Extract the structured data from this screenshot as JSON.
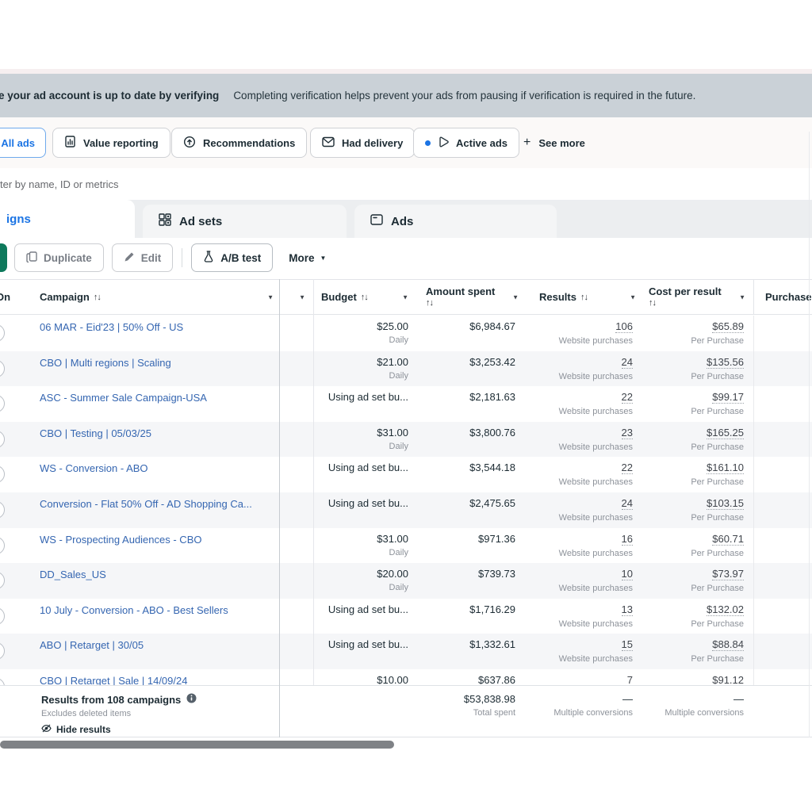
{
  "banner": {
    "bold_text": "e your ad account is up to date by verifying",
    "text": "Completing verification helps prevent your ads from pausing if verification is required in the future."
  },
  "filters": {
    "all_ads_label": "All ads",
    "buttons": [
      {
        "label": "Value reporting",
        "icon": "value-reporting-icon"
      },
      {
        "label": "Recommendations",
        "icon": "recommendations-icon"
      },
      {
        "label": "Had delivery",
        "icon": "had-delivery-icon"
      },
      {
        "label": "Active ads",
        "icon": "active-ads-icon"
      }
    ],
    "see_more_plus": "+",
    "see_more_label": "See more"
  },
  "search": {
    "placeholder": "ter by name, ID or metrics"
  },
  "tabs": {
    "campaigns_label": "igns",
    "ad_sets_label": "Ad sets",
    "ads_label": "Ads"
  },
  "toolbar": {
    "duplicate_label": "Duplicate",
    "edit_label": "Edit",
    "ab_test_label": "A/B test",
    "more_label": "More",
    "more_caret": "▼"
  },
  "table": {
    "header": {
      "on": "On",
      "campaign": "Campaign",
      "budget": "Budget",
      "amount_spent": "Amount spent",
      "results": "Results",
      "cost_per_result": "Cost per result",
      "purchases": "Purchases",
      "sort_glyph": "↑↓",
      "caret": "▼"
    },
    "rows": [
      {
        "name": "06 MAR - Eid'23 | 50% Off - US",
        "budget": "$25.00",
        "budget_sub": "Daily",
        "spent": "$6,984.67",
        "results": "106",
        "results_sub": "Website purchases",
        "cost": "$65.89",
        "cost_sub": "Per Purchase"
      },
      {
        "name": "CBO | Multi regions | Scaling",
        "budget": "$21.00",
        "budget_sub": "Daily",
        "spent": "$3,253.42",
        "results": "24",
        "results_sub": "Website purchases",
        "cost": "$135.56",
        "cost_sub": "Per Purchase"
      },
      {
        "name": "ASC - Summer Sale Campaign-USA",
        "budget": "Using ad set bu...",
        "budget_sub": "",
        "spent": "$2,181.63",
        "results": "22",
        "results_sub": "Website purchases",
        "cost": "$99.17",
        "cost_sub": "Per Purchase"
      },
      {
        "name": "CBO | Testing | 05/03/25",
        "budget": "$31.00",
        "budget_sub": "Daily",
        "spent": "$3,800.76",
        "results": "23",
        "results_sub": "Website purchases",
        "cost": "$165.25",
        "cost_sub": "Per Purchase"
      },
      {
        "name": "WS - Conversion - ABO",
        "budget": "Using ad set bu...",
        "budget_sub": "",
        "spent": "$3,544.18",
        "results": "22",
        "results_sub": "Website purchases",
        "cost": "$161.10",
        "cost_sub": "Per Purchase"
      },
      {
        "name": "Conversion - Flat 50% Off - AD Shopping Ca...",
        "budget": "Using ad set bu...",
        "budget_sub": "",
        "spent": "$2,475.65",
        "results": "24",
        "results_sub": "Website purchases",
        "cost": "$103.15",
        "cost_sub": "Per Purchase"
      },
      {
        "name": "WS - Prospecting Audiences - CBO",
        "budget": "$31.00",
        "budget_sub": "Daily",
        "spent": "$971.36",
        "results": "16",
        "results_sub": "Website purchases",
        "cost": "$60.71",
        "cost_sub": "Per Purchase"
      },
      {
        "name": "DD_Sales_US",
        "budget": "$20.00",
        "budget_sub": "Daily",
        "spent": "$739.73",
        "results": "10",
        "results_sub": "Website purchases",
        "cost": "$73.97",
        "cost_sub": "Per Purchase"
      },
      {
        "name": "10 July - Conversion - ABO - Best Sellers",
        "budget": "Using ad set bu...",
        "budget_sub": "",
        "spent": "$1,716.29",
        "results": "13",
        "results_sub": "Website purchases",
        "cost": "$132.02",
        "cost_sub": "Per Purchase"
      },
      {
        "name": "ABO | Retarget | 30/05",
        "budget": "Using ad set bu...",
        "budget_sub": "",
        "spent": "$1,332.61",
        "results": "15",
        "results_sub": "Website purchases",
        "cost": "$88.84",
        "cost_sub": "Per Purchase"
      },
      {
        "name": "CBO | Retarget | Sale | 14/09/24",
        "budget": "$10.00",
        "budget_sub": "",
        "spent": "$637.86",
        "results": "7",
        "results_sub": "",
        "cost": "$91.12",
        "cost_sub": ""
      }
    ]
  },
  "summary": {
    "results_line": "Results from 108 campaigns",
    "excludes_line": "Excludes deleted items",
    "hide_results": "Hide results",
    "total_spent": "$53,838.98",
    "total_spent_label": "Total spent",
    "results_total": "—",
    "results_total_label": "Multiple conversions",
    "cost_total": "—",
    "cost_total_label": "Multiple conversions"
  },
  "colors": {
    "accent_blue": "#1b74e4",
    "link_blue": "#3566b1",
    "create_green": "#0e795c",
    "banner_bg": "#cad1d7",
    "scrollbar_gray": "#7f8286"
  }
}
